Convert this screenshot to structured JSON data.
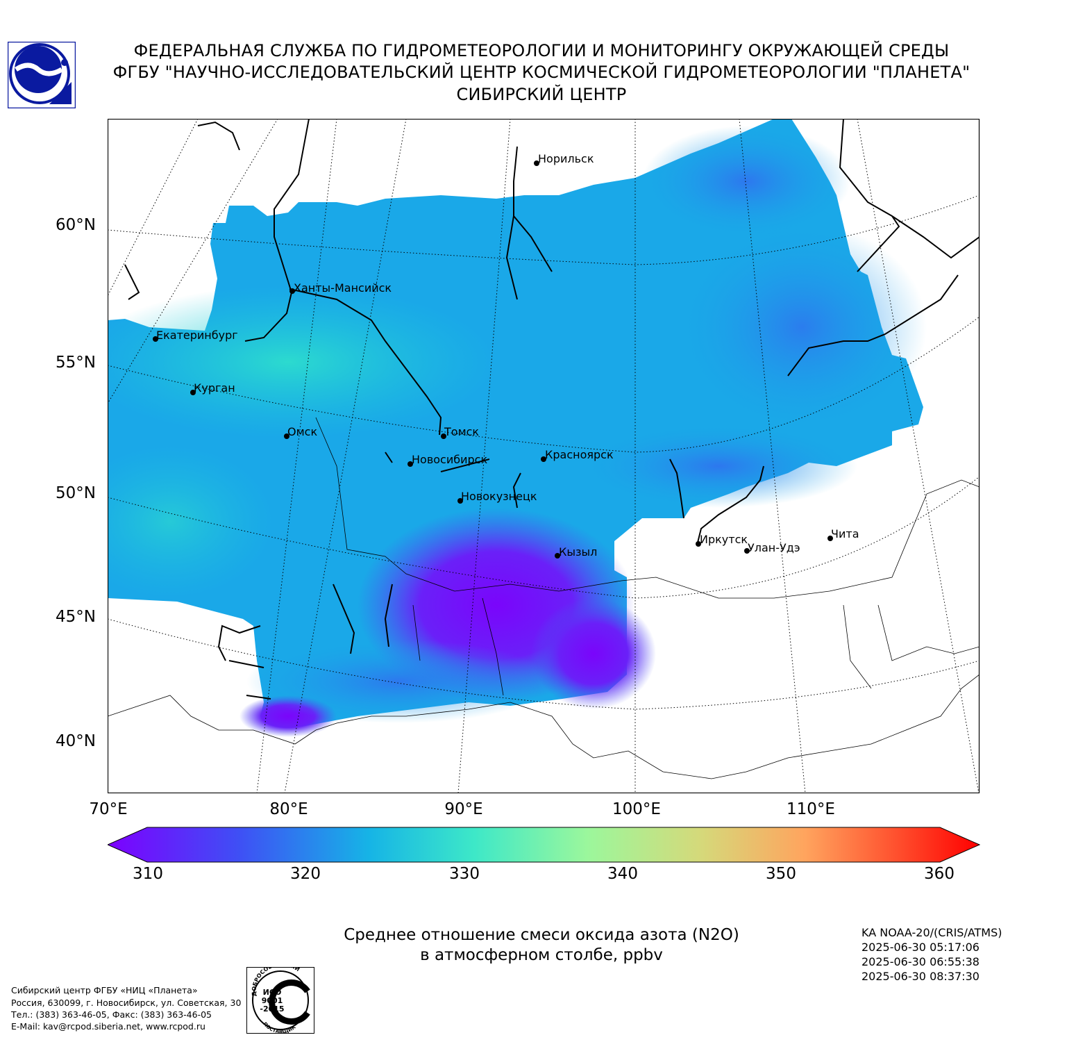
{
  "header": {
    "line1": "ФЕДЕРАЛЬНАЯ СЛУЖБА ПО ГИДРОМЕТЕОРОЛОГИИ И МОНИТОРИНГУ ОКРУЖАЮЩЕЙ СРЕДЫ",
    "line2": "ФГБУ \"НАУЧНО-ИССЛЕДОВАТЕЛЬСКИЙ ЦЕНТР КОСМИЧЕСКОЙ ГИДРОМЕТЕОРОЛОГИИ \"ПЛАНЕТА\"",
    "line3": "СИБИРСКИЙ ЦЕНТР"
  },
  "logo": {
    "icon": "planeta-logo-icon",
    "color": "#0a1aa0"
  },
  "map": {
    "lat_labels": [
      "60°N",
      "55°N",
      "50°N",
      "45°N",
      "40°N"
    ],
    "lon_labels": [
      "70°E",
      "80°E",
      "90°E",
      "100°E",
      "110°E"
    ],
    "cities": [
      {
        "name": "Норильск"
      },
      {
        "name": "Ханты-Мансийск"
      },
      {
        "name": "Екатеринбург"
      },
      {
        "name": "Курган"
      },
      {
        "name": "Омск"
      },
      {
        "name": "Томск"
      },
      {
        "name": "Новосибирск"
      },
      {
        "name": "Красноярск"
      },
      {
        "name": "Новокузнецк"
      },
      {
        "name": "Иркутск"
      },
      {
        "name": "Улан-Удэ"
      },
      {
        "name": "Чита"
      },
      {
        "name": "Кызыл"
      }
    ],
    "field_colors": {
      "low": "#7d00ff",
      "mid_low": "#3a5cf0",
      "mid": "#1aa6e8",
      "mid_high": "#1cc6dc",
      "high": "#2fe0c8"
    }
  },
  "colorbar": {
    "min": 310,
    "max": 360,
    "ticks": [
      "310",
      "320",
      "330",
      "340",
      "350",
      "360"
    ],
    "colors": [
      "#7d00ff",
      "#3f4ff5",
      "#16b4e6",
      "#3de8c8",
      "#9bf79c",
      "#d5d97a",
      "#ffa45e",
      "#ff5430",
      "#ff0000"
    ]
  },
  "caption": {
    "line1": "Среднее отношение смеси оксида азота (N2O)",
    "line2": "в атмосферном столбе, ppbv"
  },
  "satellite": {
    "name": "KA NOAA-20/(CRIS/ATMS)",
    "time1": "2025-06-30 05:17:06",
    "time2": "2025-06-30 06:55:38",
    "time3": "2025-06-30 08:37:30"
  },
  "footer": {
    "line1": "Сибирский центр ФГБУ «НИЦ «Планета»",
    "line2": "Россия, 630099, г. Новосибирск, ул. Советская, 30",
    "line3": "Тел.: (383) 363-46-05, Факс: (383) 363-46-05",
    "line4": "E-Mail: kav@rcpod.siberia.net, www.rcpod.ru"
  },
  "iso_badge": {
    "top_text": "ДОБРОСОВЕСТНЫЙ",
    "iso": "ИСО",
    "num": "9001",
    "year": "-2015",
    "bottom_text": "ПОСТАВЩИК"
  }
}
